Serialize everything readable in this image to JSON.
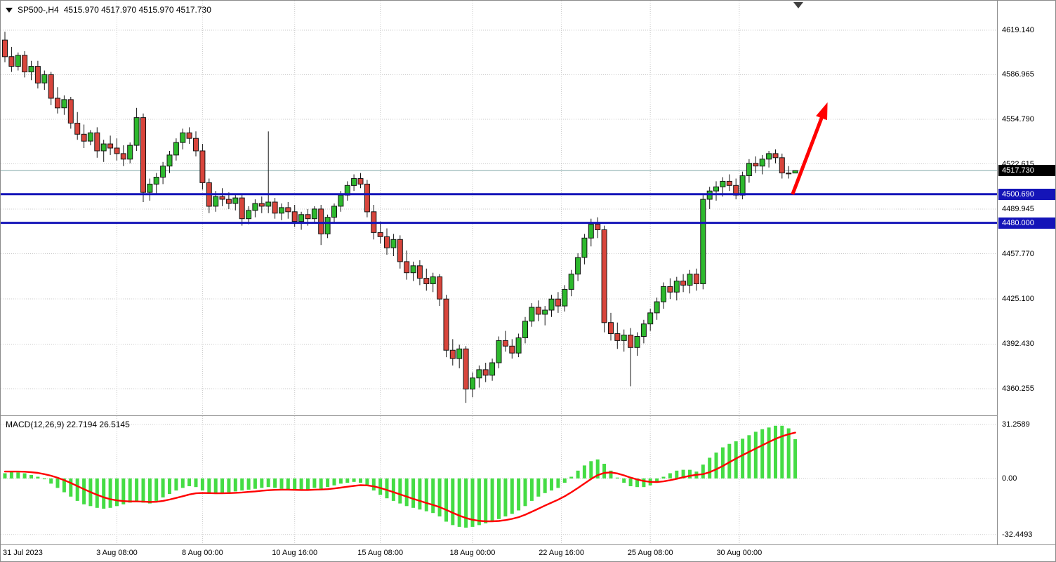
{
  "window": {
    "symbol_label": "SP500-,H4",
    "ohlc_text": "4515.970 4517.970 4515.970 4517.730"
  },
  "colors": {
    "bull": "#2db92d",
    "bear": "#d8453c",
    "candle_border": "#151515",
    "wick": "#151515",
    "grid": "#c9c9c9",
    "last_price_line": "#7fa6a6",
    "level_blue": "#1414b8",
    "macd_hist": "#44dc44",
    "macd_signal": "#ff0000"
  },
  "chart_data": [
    {
      "type": "candlestick",
      "symbol": "SP500-",
      "timeframe": "H4",
      "current_ohlc": {
        "open": "4515.970",
        "high": "4517.970",
        "low": "4515.970",
        "close": "4517.730"
      },
      "ylim": [
        4341.0,
        4640.4
      ],
      "y_ticks": [
        {
          "label": "4619.140",
          "value": 4619.14
        },
        {
          "label": "4586.965",
          "value": 4586.965
        },
        {
          "label": "4554.790",
          "value": 4554.79
        },
        {
          "label": "4522.615",
          "value": 4522.615
        },
        {
          "label": "4489.945",
          "value": 4489.945
        },
        {
          "label": "4457.770",
          "value": 4457.77
        },
        {
          "label": "4425.100",
          "value": 4425.1
        },
        {
          "label": "4392.430",
          "value": 4392.43
        },
        {
          "label": "4360.255",
          "value": 4360.255
        }
      ],
      "x_ticks": [
        {
          "label": "31 Jul 2023",
          "index": 0
        },
        {
          "label": "3 Aug 08:00",
          "index": 17
        },
        {
          "label": "8 Aug 00:00",
          "index": 30
        },
        {
          "label": "10 Aug 16:00",
          "index": 44
        },
        {
          "label": "15 Aug 08:00",
          "index": 57
        },
        {
          "label": "18 Aug 00:00",
          "index": 71
        },
        {
          "label": "22 Aug 16:00",
          "index": 84.5
        },
        {
          "label": "25 Aug 08:00",
          "index": 98
        },
        {
          "label": "30 Aug 00:00",
          "index": 111.5
        }
      ],
      "levels": [
        {
          "label": "4500.690",
          "price": 4500.69
        },
        {
          "label": "4480.000",
          "price": 4480.0
        }
      ],
      "last_price": {
        "label": "4517.730",
        "value": 4517.73
      },
      "annotations": [
        {
          "type": "up-arrow",
          "color": "#ff0000",
          "from": {
            "index": 119.6,
            "price": 4500.7
          },
          "to": {
            "index": 124.9,
            "price": 4567
          }
        }
      ],
      "candles": [
        [
          4612,
          4618,
          4596,
          4600
        ],
        [
          4600,
          4607,
          4589,
          4593
        ],
        [
          4593,
          4603,
          4590,
          4601
        ],
        [
          4601,
          4604,
          4585,
          4589
        ],
        [
          4589,
          4597,
          4583,
          4593
        ],
        [
          4593,
          4597,
          4577,
          4581
        ],
        [
          4581,
          4590,
          4576,
          4587
        ],
        [
          4587,
          4589,
          4565,
          4570
        ],
        [
          4570,
          4578,
          4559,
          4563
        ],
        [
          4563,
          4572,
          4558,
          4569
        ],
        [
          4569,
          4571,
          4548,
          4552
        ],
        [
          4552,
          4560,
          4540,
          4544
        ],
        [
          4544,
          4551,
          4534,
          4539
        ],
        [
          4539,
          4547,
          4536,
          4545
        ],
        [
          4545,
          4549,
          4527,
          4532
        ],
        [
          4532,
          4540,
          4524,
          4537
        ],
        [
          4537,
          4543,
          4529,
          4534
        ],
        [
          4534,
          4541,
          4525,
          4530
        ],
        [
          4530,
          4536,
          4521,
          4526
        ],
        [
          4526,
          4538,
          4523,
          4536
        ],
        [
          4536,
          4563,
          4532,
          4556
        ],
        [
          4556,
          4559,
          4495,
          4502
        ],
        [
          4502,
          4512,
          4496,
          4508
        ],
        [
          4508,
          4516,
          4501,
          4513
        ],
        [
          4513,
          4524,
          4508,
          4521
        ],
        [
          4521,
          4532,
          4516,
          4529
        ],
        [
          4529,
          4541,
          4525,
          4538
        ],
        [
          4538,
          4548,
          4533,
          4545
        ],
        [
          4545,
          4549,
          4537,
          4541
        ],
        [
          4541,
          4546,
          4528,
          4532
        ],
        [
          4532,
          4537,
          4504,
          4509
        ],
        [
          4509,
          4512,
          4487,
          4492
        ],
        [
          4492,
          4503,
          4488,
          4499
        ],
        [
          4499,
          4505,
          4492,
          4497
        ],
        [
          4497,
          4502,
          4490,
          4494
        ],
        [
          4494,
          4500,
          4489,
          4498
        ],
        [
          4498,
          4501,
          4478,
          4483
        ],
        [
          4483,
          4492,
          4479,
          4489
        ],
        [
          4489,
          4497,
          4484,
          4494
        ],
        [
          4494,
          4499,
          4487,
          4492
        ],
        [
          4492,
          4546,
          4487,
          4495
        ],
        [
          4495,
          4498,
          4483,
          4487
        ],
        [
          4487,
          4494,
          4482,
          4491
        ],
        [
          4491,
          4495,
          4483,
          4488
        ],
        [
          4488,
          4493,
          4477,
          4481
        ],
        [
          4481,
          4488,
          4475,
          4486
        ],
        [
          4486,
          4490,
          4478,
          4483
        ],
        [
          4483,
          4492,
          4480,
          4490
        ],
        [
          4490,
          4493,
          4464,
          4472
        ],
        [
          4472,
          4486,
          4469,
          4484
        ],
        [
          4484,
          4494,
          4480,
          4492
        ],
        [
          4492,
          4503,
          4488,
          4500
        ],
        [
          4500,
          4510,
          4496,
          4507
        ],
        [
          4507,
          4515,
          4503,
          4512
        ],
        [
          4512,
          4516,
          4505,
          4508
        ],
        [
          4508,
          4511,
          4484,
          4488
        ],
        [
          4488,
          4493,
          4468,
          4473
        ],
        [
          4473,
          4481,
          4465,
          4470
        ],
        [
          4470,
          4476,
          4457,
          4462
        ],
        [
          4462,
          4472,
          4456,
          4468
        ],
        [
          4468,
          4471,
          4447,
          4452
        ],
        [
          4452,
          4460,
          4439,
          4444
        ],
        [
          4444,
          4452,
          4438,
          4449
        ],
        [
          4449,
          4453,
          4435,
          4440
        ],
        [
          4440,
          4447,
          4431,
          4436
        ],
        [
          4436,
          4444,
          4430,
          4441
        ],
        [
          4441,
          4443,
          4420,
          4425
        ],
        [
          4425,
          4428,
          4383,
          4388
        ],
        [
          4388,
          4396,
          4377,
          4382
        ],
        [
          4382,
          4392,
          4375,
          4389
        ],
        [
          4389,
          4391,
          4350,
          4360
        ],
        [
          4360,
          4372,
          4354,
          4368
        ],
        [
          4368,
          4377,
          4361,
          4374
        ],
        [
          4374,
          4379,
          4365,
          4370
        ],
        [
          4370,
          4382,
          4366,
          4379
        ],
        [
          4379,
          4398,
          4375,
          4395
        ],
        [
          4395,
          4402,
          4387,
          4391
        ],
        [
          4391,
          4396,
          4382,
          4386
        ],
        [
          4386,
          4400,
          4383,
          4397
        ],
        [
          4397,
          4412,
          4393,
          4409
        ],
        [
          4409,
          4422,
          4405,
          4419
        ],
        [
          4419,
          4424,
          4409,
          4414
        ],
        [
          4414,
          4420,
          4406,
          4417
        ],
        [
          4417,
          4428,
          4412,
          4425
        ],
        [
          4425,
          4430,
          4415,
          4420
        ],
        [
          4420,
          4435,
          4416,
          4432
        ],
        [
          4432,
          4446,
          4427,
          4443
        ],
        [
          4443,
          4458,
          4438,
          4455
        ],
        [
          4455,
          4472,
          4450,
          4469
        ],
        [
          4469,
          4483,
          4463,
          4479
        ],
        [
          4479,
          4484,
          4469,
          4475
        ],
        [
          4475,
          4478,
          4401,
          4408
        ],
        [
          4408,
          4415,
          4395,
          4400
        ],
        [
          4400,
          4408,
          4389,
          4395
        ],
        [
          4395,
          4403,
          4387,
          4399
        ],
        [
          4399,
          4404,
          4362,
          4390
        ],
        [
          4390,
          4401,
          4384,
          4398
        ],
        [
          4398,
          4410,
          4393,
          4407
        ],
        [
          4407,
          4418,
          4402,
          4415
        ],
        [
          4415,
          4426,
          4410,
          4423
        ],
        [
          4423,
          4437,
          4418,
          4434
        ],
        [
          4434,
          4440,
          4425,
          4430
        ],
        [
          4430,
          4441,
          4424,
          4438
        ],
        [
          4438,
          4443,
          4430,
          4435
        ],
        [
          4435,
          4446,
          4429,
          4443
        ],
        [
          4443,
          4447,
          4431,
          4436
        ],
        [
          4436,
          4500,
          4432,
          4497
        ],
        [
          4497,
          4506,
          4490,
          4503
        ],
        [
          4503,
          4510,
          4496,
          4506
        ],
        [
          4506,
          4513,
          4499,
          4510
        ],
        [
          4510,
          4515,
          4503,
          4507
        ],
        [
          4507,
          4512,
          4497,
          4500
        ],
        [
          4500,
          4517,
          4497,
          4514
        ],
        [
          4514,
          4526,
          4509,
          4523
        ],
        [
          4523,
          4528,
          4516,
          4521
        ],
        [
          4521,
          4529,
          4515,
          4526
        ],
        [
          4526,
          4532,
          4520,
          4530
        ],
        [
          4530,
          4533,
          4523,
          4527
        ],
        [
          4527,
          4530,
          4512,
          4516
        ],
        [
          4516,
          4521,
          4512,
          4515.97
        ],
        [
          4515.97,
          4517.97,
          4515.97,
          4517.73
        ]
      ]
    },
    {
      "type": "bar+line",
      "name": "MACD",
      "label": "MACD(12,26,9) 22.7194 26.5145",
      "current_values": {
        "macd": 22.7194,
        "signal": 26.5145
      },
      "ylim": [
        -38.2,
        36.1
      ],
      "y_ticks": [
        {
          "label": "31.2589",
          "value": 31.2589
        },
        {
          "label": "0.00",
          "value": 0
        },
        {
          "label": "-32.4493",
          "value": -32.4493
        }
      ],
      "histogram": [
        3,
        4,
        3.5,
        3,
        2,
        1,
        -0.5,
        -3,
        -5.5,
        -8,
        -10.5,
        -13,
        -15,
        -16,
        -17,
        -17.5,
        -17,
        -16,
        -15,
        -14,
        -13,
        -14,
        -14.5,
        -13,
        -11,
        -9,
        -7,
        -5.5,
        -4.5,
        -5,
        -7,
        -8.5,
        -9,
        -8.5,
        -8,
        -7.5,
        -7,
        -6.5,
        -6,
        -5.5,
        -5,
        -5.5,
        -6,
        -6.5,
        -7,
        -7,
        -6.5,
        -5.5,
        -6,
        -5,
        -4,
        -3,
        -2.5,
        -2,
        -2.5,
        -4.5,
        -7,
        -9.5,
        -11.5,
        -13,
        -14.5,
        -16,
        -17,
        -18,
        -19,
        -20,
        -22,
        -25,
        -27,
        -28,
        -28.5,
        -28,
        -27,
        -26,
        -25,
        -23.5,
        -22,
        -20.5,
        -18.5,
        -16,
        -13,
        -10.5,
        -8.5,
        -7,
        -5.5,
        -2.5,
        1,
        4.5,
        7.5,
        10,
        11,
        8.5,
        4.5,
        0.5,
        -2.5,
        -4.5,
        -5,
        -5,
        -4,
        -2,
        1,
        3,
        4.5,
        5,
        5,
        4,
        8,
        12,
        15,
        18,
        20,
        21.5,
        23,
        25,
        27,
        28.5,
        29.5,
        30.5,
        30.5,
        29,
        22.72
      ],
      "signal": [
        4,
        4,
        4,
        3.9,
        3.6,
        3.2,
        2.5,
        1.6,
        0.4,
        -1,
        -2.6,
        -4.4,
        -6.2,
        -7.9,
        -9.5,
        -10.9,
        -12,
        -12.7,
        -13.1,
        -13.3,
        -13.3,
        -13.4,
        -13.6,
        -13.5,
        -13,
        -12.2,
        -11.3,
        -10.3,
        -9.3,
        -8.6,
        -8.4,
        -8.5,
        -8.6,
        -8.6,
        -8.5,
        -8.3,
        -8.1,
        -7.8,
        -7.5,
        -7.1,
        -6.8,
        -6.6,
        -6.5,
        -6.5,
        -6.6,
        -6.7,
        -6.7,
        -6.5,
        -6.4,
        -6.2,
        -5.8,
        -5.3,
        -4.8,
        -4.3,
        -3.9,
        -4,
        -4.6,
        -5.5,
        -6.7,
        -7.9,
        -9.2,
        -10.5,
        -11.8,
        -13,
        -14.2,
        -15.3,
        -16.6,
        -18.2,
        -19.9,
        -21.5,
        -22.9,
        -23.9,
        -24.5,
        -24.8,
        -24.8,
        -24.6,
        -24.1,
        -23.4,
        -22.4,
        -21,
        -19.3,
        -17.5,
        -15.7,
        -14,
        -12.3,
        -10.3,
        -8,
        -5.5,
        -2.9,
        -0.3,
        1.9,
        3.2,
        3.5,
        2.9,
        1.8,
        0.5,
        -0.6,
        -1.5,
        -2,
        -2.1,
        -1.7,
        -1,
        -0.2,
        0.7,
        1.5,
        2.1,
        2.5,
        3.6,
        5.3,
        7.2,
        9.4,
        11.5,
        13.5,
        15.4,
        17.3,
        19.2,
        21.1,
        22.9,
        24.4,
        25.6,
        26.51
      ]
    }
  ]
}
